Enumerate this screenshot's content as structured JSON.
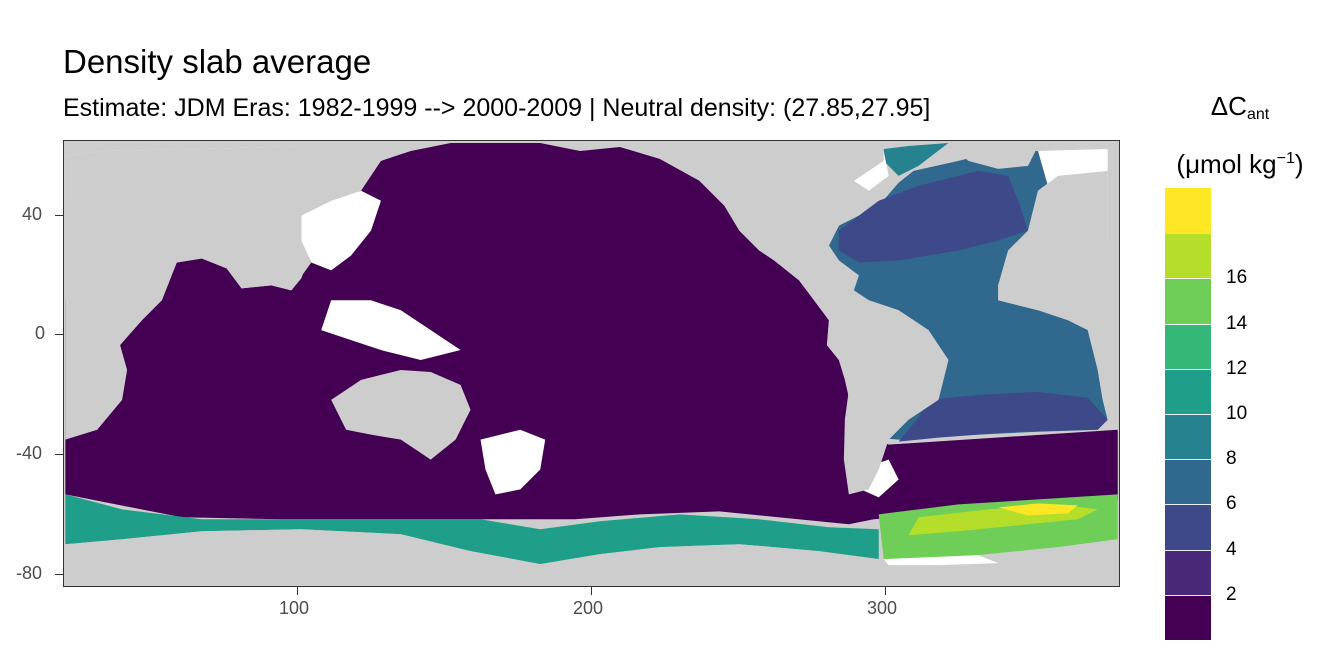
{
  "title": "Density slab average",
  "subtitle": "Estimate: JDM Eras: 1982-1999 --> 2000-2009 | Neutral density: (27.85,27.95]",
  "map": {
    "x_ticks": [
      "100",
      "200",
      "300"
    ],
    "y_ticks": [
      "40",
      "0",
      "-40",
      "-80"
    ],
    "x_range": [
      20,
      380
    ],
    "y_range": [
      -85,
      65
    ]
  },
  "legend": {
    "title_main": "ΔC",
    "title_sub": "ant",
    "units_pre": "(μmol kg",
    "units_sup": "−1",
    "units_post": ")",
    "labels": [
      "2",
      "4",
      "6",
      "8",
      "10",
      "12",
      "14",
      "16"
    ],
    "colors": [
      "#440154",
      "#482878",
      "#3e4989",
      "#31688e",
      "#26828e",
      "#1f9e89",
      "#35b779",
      "#6ece58",
      "#b5de2b",
      "#fde725"
    ]
  },
  "colors": {
    "land": "#cdcdcd",
    "missing": "#ffffff",
    "frame": "#333333"
  }
}
